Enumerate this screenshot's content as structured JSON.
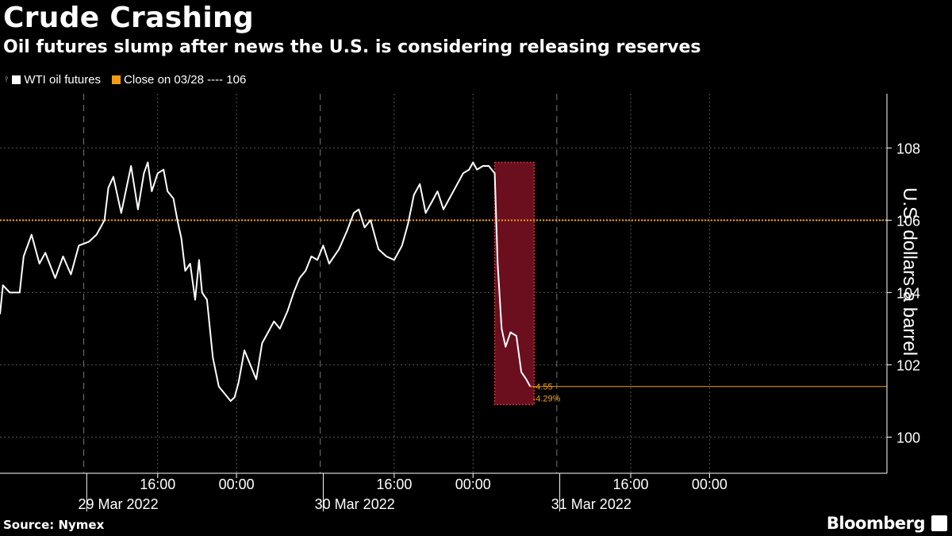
{
  "header": {
    "title": "Crude Crashing",
    "subtitle": "Oil futures slump after news the U.S. is considering releasing reserves"
  },
  "legend": {
    "series_label": "WTI oil futures",
    "close_label": "Close on 03/28 ---- 106"
  },
  "footer": {
    "source": "Source: Nymex",
    "brand": "Bloomberg"
  },
  "colors": {
    "series": "#ffffff",
    "reference": "#f39c12",
    "highlight": "#6b0f1e",
    "highlight_border": "#e0303a",
    "grid": "#555555"
  },
  "chart_data": {
    "type": "line",
    "title": "Crude Crashing",
    "subtitle": "Oil futures slump after news the U.S. is considering releasing reserves",
    "ylabel": "U.S. dollars a barrel",
    "ylim": [
      99,
      109.5
    ],
    "y_ticks": [
      100,
      102,
      104,
      106,
      108
    ],
    "x_range_hours": [
      0,
      90
    ],
    "x_tick_labels": [
      {
        "hour": 16,
        "label": "16:00"
      },
      {
        "hour": 24,
        "label": "00:00"
      },
      {
        "hour": 40,
        "label": "16:00"
      },
      {
        "hour": 48,
        "label": "00:00"
      },
      {
        "hour": 64,
        "label": "16:00"
      },
      {
        "hour": 72,
        "label": "00:00"
      }
    ],
    "date_labels": [
      {
        "hour": 12,
        "label": "29 Mar 2022"
      },
      {
        "hour": 36,
        "label": "30 Mar 2022"
      },
      {
        "hour": 60,
        "label": "31 Mar 2022"
      }
    ],
    "reference_line": {
      "name": "Close on 03/28",
      "value": 106
    },
    "highlight": {
      "x_start_hour": 50.2,
      "x_end_hour": 54.2,
      "y_low": 100.9,
      "y_high": 107.6
    },
    "annotations": {
      "change": "-4.55",
      "change_pct": "-4.29%",
      "last_value": 101.4
    },
    "series": [
      {
        "name": "WTI oil futures",
        "points": [
          [
            0,
            103.4
          ],
          [
            0.3,
            104.2
          ],
          [
            1,
            104.0
          ],
          [
            2,
            104.0
          ],
          [
            2.4,
            105.0
          ],
          [
            3.2,
            105.6
          ],
          [
            4,
            104.8
          ],
          [
            4.6,
            105.1
          ],
          [
            5.6,
            104.4
          ],
          [
            6.4,
            105.0
          ],
          [
            7.2,
            104.5
          ],
          [
            8,
            105.3
          ],
          [
            9,
            105.4
          ],
          [
            9.8,
            105.6
          ],
          [
            10.6,
            106.0
          ],
          [
            11,
            106.9
          ],
          [
            11.5,
            107.2
          ],
          [
            12.3,
            106.2
          ],
          [
            13.3,
            107.5
          ],
          [
            14,
            106.3
          ],
          [
            14.6,
            107.3
          ],
          [
            15,
            107.6
          ],
          [
            15.4,
            106.8
          ],
          [
            16,
            107.3
          ],
          [
            16.6,
            107.4
          ],
          [
            17,
            106.8
          ],
          [
            17.6,
            106.6
          ],
          [
            18,
            106.0
          ],
          [
            18.4,
            105.5
          ],
          [
            18.8,
            104.6
          ],
          [
            19.3,
            104.8
          ],
          [
            19.8,
            103.8
          ],
          [
            20.2,
            104.9
          ],
          [
            20.5,
            104.0
          ],
          [
            21,
            103.8
          ],
          [
            21.6,
            102.2
          ],
          [
            22.2,
            101.4
          ],
          [
            22.8,
            101.2
          ],
          [
            23.4,
            101.0
          ],
          [
            23.8,
            101.1
          ],
          [
            24.2,
            101.5
          ],
          [
            24.8,
            102.4
          ],
          [
            25.4,
            102.0
          ],
          [
            26,
            101.6
          ],
          [
            26.6,
            102.6
          ],
          [
            27.2,
            102.9
          ],
          [
            27.8,
            103.2
          ],
          [
            28.4,
            103.0
          ],
          [
            29.2,
            103.5
          ],
          [
            29.8,
            104.0
          ],
          [
            30.4,
            104.4
          ],
          [
            31,
            104.6
          ],
          [
            31.6,
            105.0
          ],
          [
            32.2,
            104.9
          ],
          [
            32.8,
            105.3
          ],
          [
            33.4,
            104.8
          ],
          [
            34.4,
            105.2
          ],
          [
            35.2,
            105.7
          ],
          [
            35.9,
            106.2
          ],
          [
            36.4,
            106.3
          ],
          [
            37,
            105.8
          ],
          [
            37.6,
            106.0
          ],
          [
            38.4,
            105.2
          ],
          [
            39.2,
            105.0
          ],
          [
            40,
            104.9
          ],
          [
            40.8,
            105.3
          ],
          [
            41.4,
            105.9
          ],
          [
            42,
            106.7
          ],
          [
            42.6,
            107.0
          ],
          [
            43.2,
            106.2
          ],
          [
            43.8,
            106.5
          ],
          [
            44.4,
            106.8
          ],
          [
            45,
            106.3
          ],
          [
            45.6,
            106.6
          ],
          [
            46.4,
            107.0
          ],
          [
            47,
            107.3
          ],
          [
            47.6,
            107.4
          ],
          [
            48,
            107.6
          ],
          [
            48.4,
            107.4
          ],
          [
            49,
            107.5
          ],
          [
            49.6,
            107.5
          ],
          [
            50.2,
            107.3
          ],
          [
            50.5,
            104.8
          ],
          [
            50.9,
            103.0
          ],
          [
            51.3,
            102.5
          ],
          [
            51.8,
            102.9
          ],
          [
            52.4,
            102.8
          ],
          [
            52.9,
            101.8
          ],
          [
            53.4,
            101.6
          ],
          [
            53.8,
            101.4
          ]
        ]
      }
    ]
  }
}
